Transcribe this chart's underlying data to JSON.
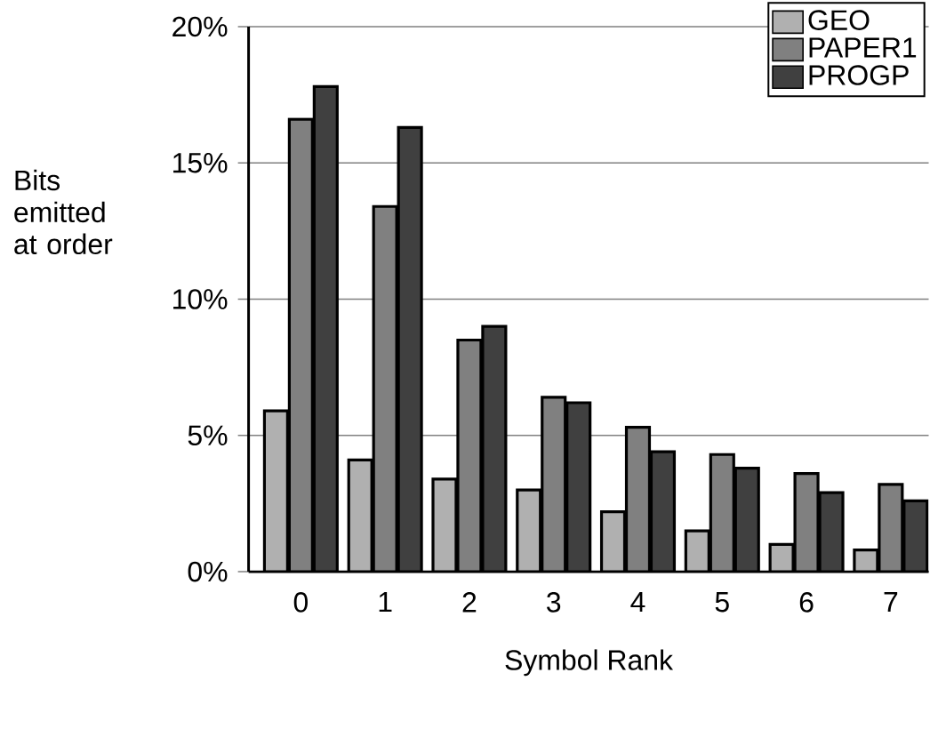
{
  "chart_data": {
    "type": "bar",
    "xlabel": "Symbol Rank",
    "ylabel": "Bits emitted at order",
    "categories": [
      "0",
      "1",
      "2",
      "3",
      "4",
      "5",
      "6",
      "7"
    ],
    "series": [
      {
        "name": "GEO",
        "color": "#b0b0b0",
        "values": [
          5.9,
          4.1,
          3.4,
          3.0,
          2.2,
          1.5,
          1.0,
          0.8
        ]
      },
      {
        "name": "PAPER1",
        "color": "#808080",
        "values": [
          16.6,
          13.4,
          8.5,
          6.4,
          5.3,
          4.3,
          3.6,
          3.2
        ]
      },
      {
        "name": "PROGP",
        "color": "#404040",
        "values": [
          17.8,
          16.3,
          9.0,
          6.2,
          4.4,
          3.8,
          2.9,
          2.6
        ]
      }
    ],
    "ylim": [
      0,
      20
    ],
    "yticks": [
      {
        "value": 0,
        "label": "0%"
      },
      {
        "value": 5,
        "label": "5%"
      },
      {
        "value": 10,
        "label": "10%"
      },
      {
        "value": 15,
        "label": "15%"
      },
      {
        "value": 20,
        "label": "20%"
      }
    ],
    "grid": "y",
    "legend": "top right"
  }
}
